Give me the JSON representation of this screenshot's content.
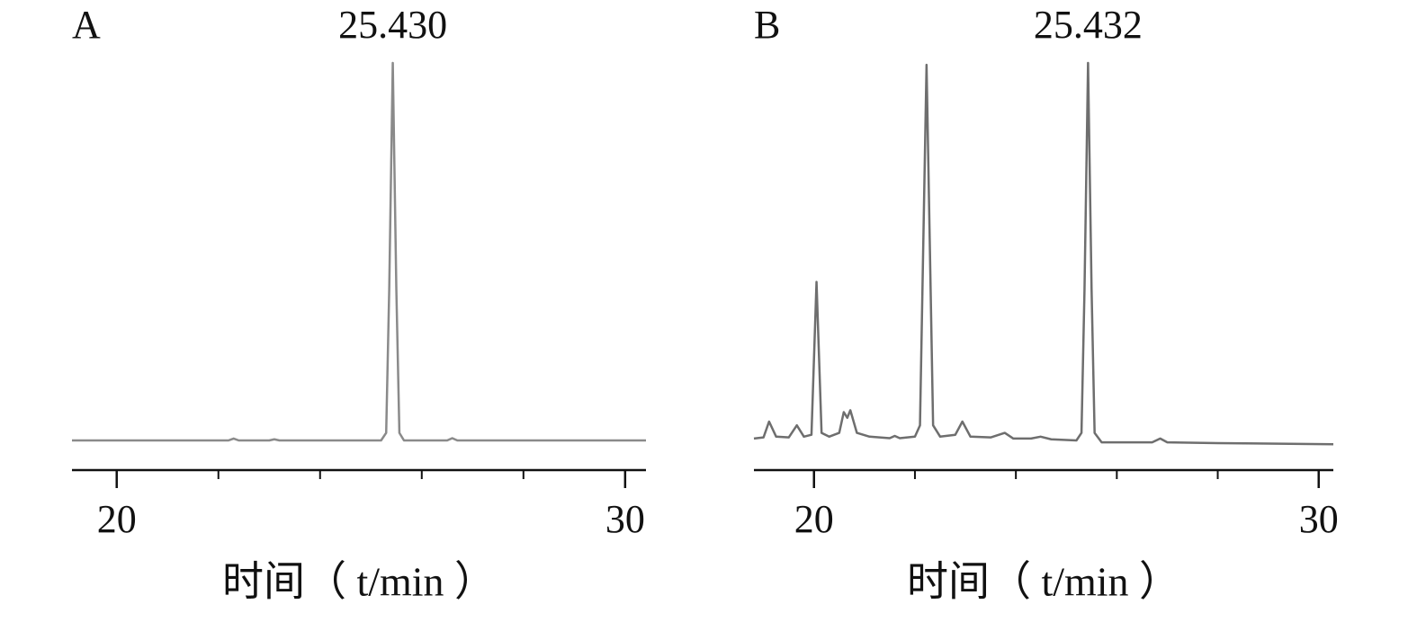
{
  "chart_data": [
    {
      "type": "line",
      "title": "A",
      "xlabel": "时间（ t/min ）",
      "color": "#8a8a8a",
      "x": [
        19.12,
        22.2,
        22.3,
        22.4,
        23.0,
        23.1,
        23.2,
        25.2,
        25.3,
        25.36,
        25.43,
        25.5,
        25.56,
        25.65,
        26.5,
        26.6,
        26.7,
        30.41
      ],
      "values": [
        0,
        0,
        0.5,
        0,
        0,
        0.3,
        0,
        0,
        2,
        40,
        100,
        40,
        2,
        0,
        0,
        0.6,
        0,
        0
      ],
      "xlim": [
        19.12,
        30.41
      ],
      "xticks": [
        20,
        30
      ],
      "minor_xticks": [
        22,
        24,
        26,
        28
      ],
      "ylim": [
        0,
        100
      ],
      "annotations": [
        {
          "x": 25.43,
          "text": "25.430"
        }
      ]
    },
    {
      "type": "line",
      "title": "B",
      "xlabel": "时间（ t/min ）",
      "color": "#6e6e6e",
      "x": [
        18.81,
        19.0,
        19.11,
        19.25,
        19.5,
        19.66,
        19.8,
        19.95,
        20.05,
        20.15,
        20.3,
        20.5,
        20.59,
        20.66,
        20.72,
        20.85,
        21.1,
        21.5,
        21.6,
        21.7,
        22.0,
        22.1,
        22.23,
        22.36,
        22.5,
        22.8,
        22.94,
        23.1,
        23.5,
        23.78,
        23.95,
        24.3,
        24.49,
        24.7,
        25.2,
        25.3,
        25.36,
        25.43,
        25.5,
        25.56,
        25.7,
        26.7,
        26.86,
        27.0,
        28.0,
        30.29
      ],
      "values": [
        0.5,
        0.8,
        5,
        1,
        0.8,
        4,
        1,
        1.5,
        42,
        2,
        1,
        2,
        7.5,
        6,
        8,
        2,
        1,
        0.6,
        1.2,
        0.6,
        1,
        4,
        99.5,
        4,
        1,
        1.5,
        5,
        1,
        0.8,
        2,
        0.5,
        0.5,
        1,
        0.3,
        0,
        2,
        40,
        100,
        40,
        2,
        -0.5,
        -0.5,
        0.5,
        -0.5,
        -0.7,
        -1
      ],
      "xlim": [
        18.81,
        30.29
      ],
      "xticks": [
        20,
        30
      ],
      "minor_xticks": [
        22,
        24,
        26,
        28
      ],
      "ylim": [
        0,
        100
      ],
      "annotations": [
        {
          "x": 25.43,
          "text": "25.432"
        }
      ]
    }
  ]
}
